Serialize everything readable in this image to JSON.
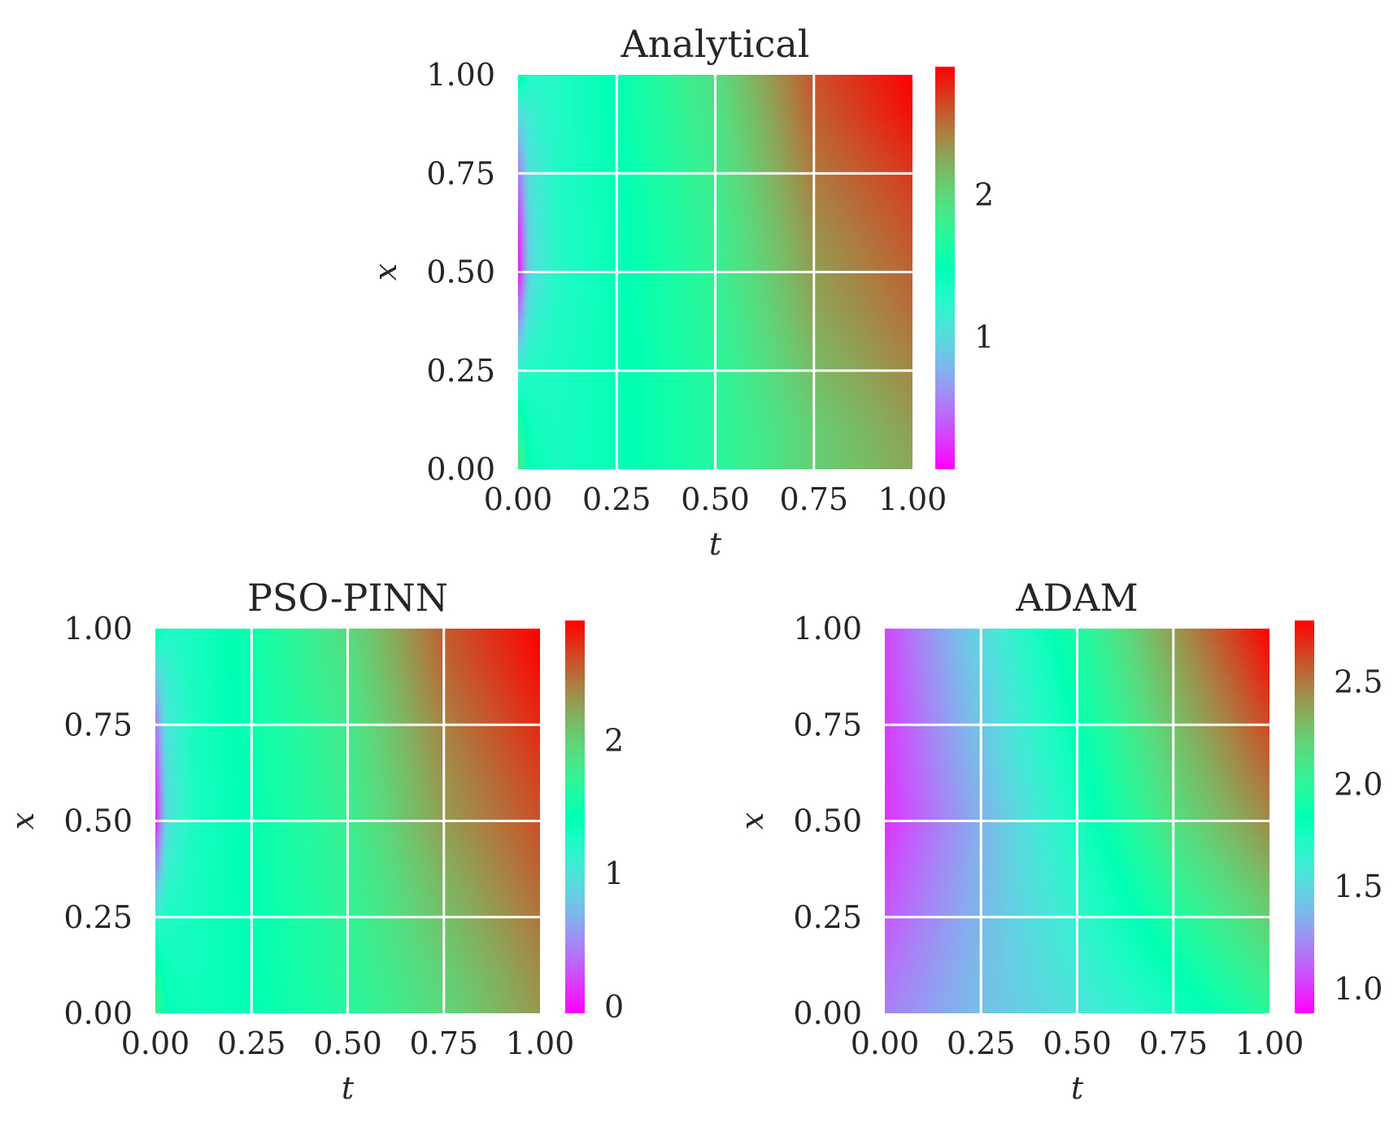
{
  "figure": {
    "colormap": "rainbow",
    "grid_color": "#ffffff"
  },
  "chart_data": [
    {
      "type": "heatmap",
      "title": "Analytical",
      "xlabel": "t",
      "ylabel": "x",
      "xlim": [
        0,
        1
      ],
      "ylim": [
        0,
        1
      ],
      "xticks": [
        "0.00",
        "0.25",
        "0.50",
        "0.75",
        "1.00"
      ],
      "yticks": [
        "0.00",
        "0.25",
        "0.50",
        "0.75",
        "1.00"
      ],
      "grid": true,
      "colorbar": {
        "vmin": 0.07,
        "vmax": 2.9,
        "ticks": [
          {
            "value": 1,
            "label": "1"
          },
          {
            "value": 2,
            "label": "2"
          }
        ]
      },
      "field": {
        "t": [
          0,
          0.03,
          0.1,
          0.25,
          0.5,
          0.75,
          1.0
        ],
        "x": [
          0,
          0.1,
          0.25,
          0.4,
          0.5,
          0.6,
          0.75,
          0.9,
          1.0
        ],
        "values": [
          [
            1.95,
            1.45,
            1.35,
            1.45,
            1.7,
            2.05,
            2.25
          ],
          [
            1.7,
            1.4,
            1.35,
            1.45,
            1.7,
            2.05,
            2.3
          ],
          [
            1.2,
            1.3,
            1.33,
            1.45,
            1.72,
            2.15,
            2.4
          ],
          [
            0.5,
            1.1,
            1.3,
            1.45,
            1.75,
            2.25,
            2.5
          ],
          [
            0.1,
            1.0,
            1.28,
            1.45,
            1.78,
            2.3,
            2.55
          ],
          [
            0.2,
            1.0,
            1.28,
            1.45,
            1.8,
            2.35,
            2.6
          ],
          [
            0.5,
            1.05,
            1.3,
            1.47,
            1.85,
            2.45,
            2.7
          ],
          [
            1.0,
            1.15,
            1.3,
            1.5,
            1.9,
            2.55,
            2.85
          ],
          [
            1.6,
            1.3,
            1.3,
            1.5,
            1.95,
            2.6,
            2.9
          ]
        ]
      }
    },
    {
      "type": "heatmap",
      "title": "PSO-PINN",
      "xlabel": "t",
      "ylabel": "x",
      "xlim": [
        0,
        1
      ],
      "ylim": [
        0,
        1
      ],
      "xticks": [
        "0.00",
        "0.25",
        "0.50",
        "0.75",
        "1.00"
      ],
      "yticks": [
        "0.00",
        "0.25",
        "0.50",
        "0.75",
        "1.00"
      ],
      "grid": true,
      "colorbar": {
        "vmin": -0.05,
        "vmax": 2.9,
        "ticks": [
          {
            "value": 0,
            "label": "0"
          },
          {
            "value": 1,
            "label": "1"
          },
          {
            "value": 2,
            "label": "2"
          }
        ]
      },
      "field": {
        "t": [
          0,
          0.03,
          0.1,
          0.25,
          0.5,
          0.75,
          1.0
        ],
        "x": [
          0,
          0.1,
          0.25,
          0.4,
          0.5,
          0.6,
          0.75,
          0.9,
          1.0
        ],
        "values": [
          [
            1.85,
            1.4,
            1.33,
            1.42,
            1.65,
            1.95,
            2.3
          ],
          [
            1.6,
            1.35,
            1.32,
            1.43,
            1.67,
            2.0,
            2.35
          ],
          [
            1.1,
            1.25,
            1.3,
            1.44,
            1.7,
            2.1,
            2.45
          ],
          [
            0.4,
            1.05,
            1.28,
            1.45,
            1.73,
            2.2,
            2.55
          ],
          [
            0.05,
            0.95,
            1.27,
            1.45,
            1.76,
            2.28,
            2.6
          ],
          [
            0.15,
            0.95,
            1.27,
            1.46,
            1.78,
            2.32,
            2.65
          ],
          [
            0.4,
            1.0,
            1.28,
            1.48,
            1.82,
            2.4,
            2.75
          ],
          [
            0.9,
            1.1,
            1.29,
            1.5,
            1.88,
            2.5,
            2.85
          ],
          [
            1.5,
            1.25,
            1.3,
            1.5,
            1.92,
            2.55,
            2.9
          ]
        ]
      }
    },
    {
      "type": "heatmap",
      "title": "ADAM",
      "xlabel": "t",
      "ylabel": "x",
      "xlim": [
        0,
        1
      ],
      "ylim": [
        0,
        1
      ],
      "xticks": [
        "0.00",
        "0.25",
        "0.50",
        "0.75",
        "1.00"
      ],
      "yticks": [
        "0.00",
        "0.25",
        "0.50",
        "0.75",
        "1.00"
      ],
      "grid": true,
      "colorbar": {
        "vmin": 0.88,
        "vmax": 2.8,
        "ticks": [
          {
            "value": 1.0,
            "label": "1.0"
          },
          {
            "value": 1.5,
            "label": "1.5"
          },
          {
            "value": 2.0,
            "label": "2.0"
          },
          {
            "value": 2.5,
            "label": "2.5"
          }
        ]
      },
      "field": {
        "t": [
          0,
          0.25,
          0.5,
          0.75,
          1.0
        ],
        "x": [
          0,
          0.5,
          1.0
        ],
        "values": [
          [
            1.2,
            1.4,
            1.55,
            1.75,
            2.0
          ],
          [
            1.0,
            1.35,
            1.75,
            2.15,
            2.45
          ],
          [
            1.05,
            1.5,
            1.95,
            2.4,
            2.8
          ]
        ]
      }
    }
  ]
}
